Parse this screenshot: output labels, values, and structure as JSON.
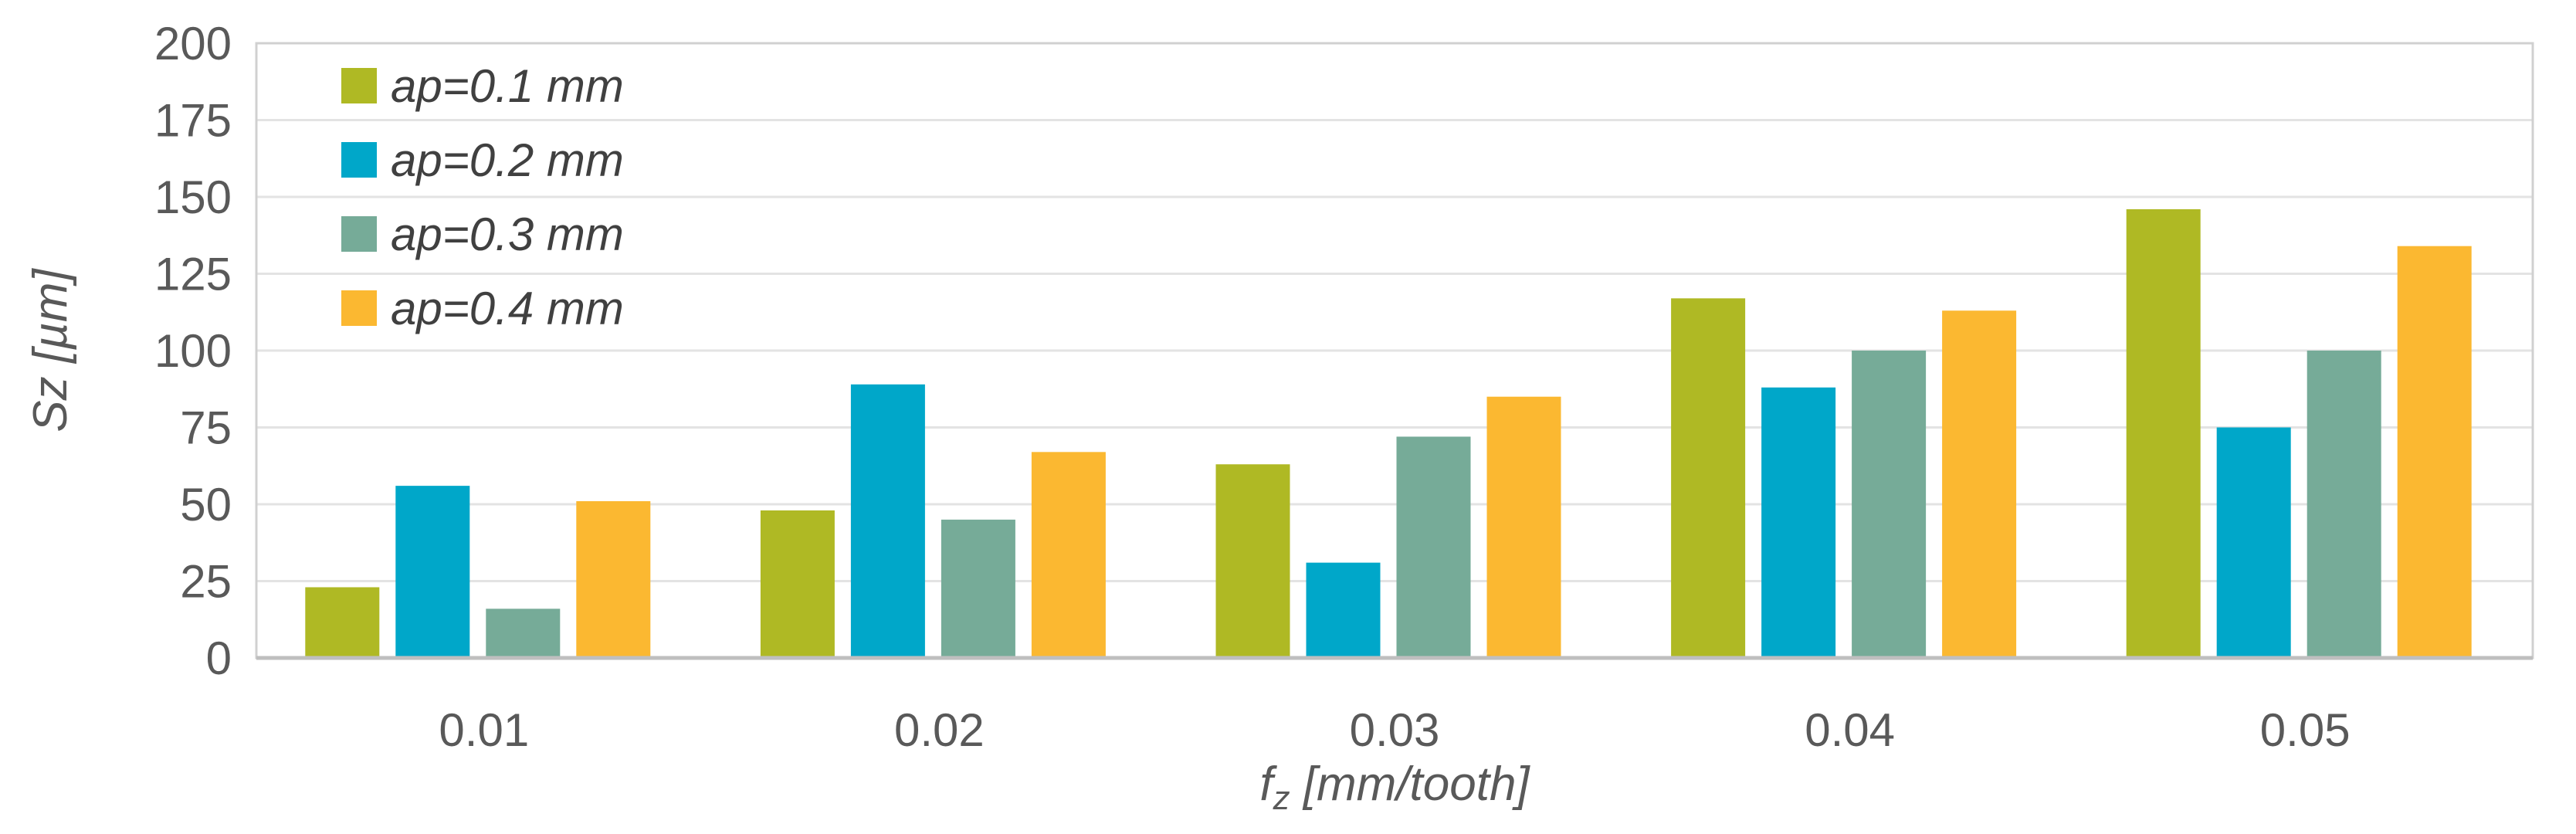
{
  "chart_data": {
    "type": "bar",
    "title": "",
    "xlabel": {
      "main": "f",
      "sub": "z",
      "rest": " [mm/tooth]"
    },
    "ylabel": "Sz [µm]",
    "categories": [
      "0.01",
      "0.02",
      "0.03",
      "0.04",
      "0.05"
    ],
    "ylim": [
      0,
      200
    ],
    "yticks": [
      0,
      25,
      50,
      75,
      100,
      125,
      150,
      175,
      200
    ],
    "grid": true,
    "legend_position": "top-left",
    "series": [
      {
        "name": "ap=0.1 mm",
        "color": "#afb924",
        "values": [
          23,
          48,
          63,
          117,
          146
        ]
      },
      {
        "name": "ap=0.2 mm",
        "color": "#00a7c9",
        "values": [
          56,
          89,
          31,
          88,
          75
        ]
      },
      {
        "name": "ap=0.3 mm",
        "color": "#76ab98",
        "values": [
          16,
          45,
          72,
          100,
          100
        ]
      },
      {
        "name": "ap=0.4 mm",
        "color": "#fbb831",
        "values": [
          51,
          67,
          85,
          113,
          134
        ]
      }
    ]
  }
}
